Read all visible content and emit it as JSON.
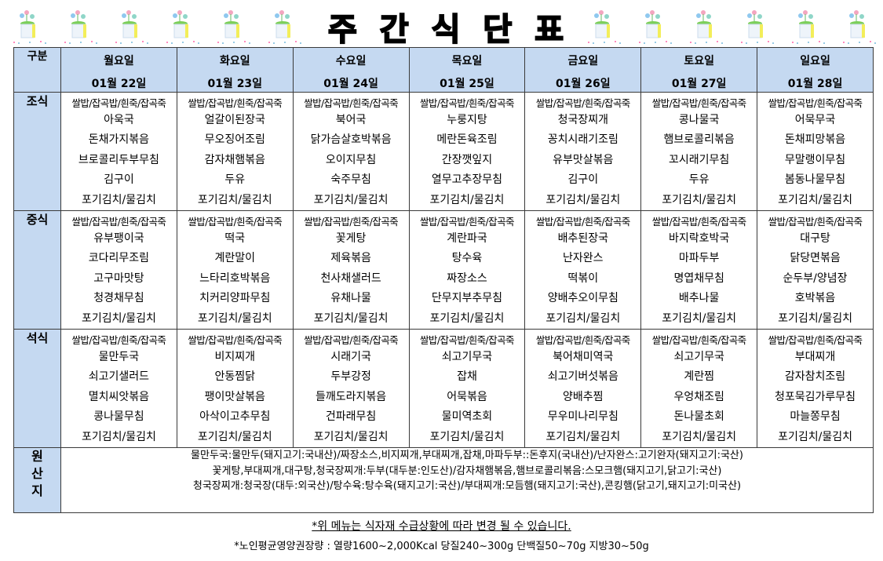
{
  "title": "주간식단표",
  "header": {
    "label": "구분",
    "days": [
      {
        "name": "월요일",
        "date": "01월 22일"
      },
      {
        "name": "화요일",
        "date": "01월 23일"
      },
      {
        "name": "수요일",
        "date": "01월 24일"
      },
      {
        "name": "목요일",
        "date": "01월 25일"
      },
      {
        "name": "금요일",
        "date": "01월 26일"
      },
      {
        "name": "토요일",
        "date": "01월 27일"
      },
      {
        "name": "일요일",
        "date": "01월 28일"
      }
    ]
  },
  "staple": "쌀밥/잡곡밥/흰죽/잡곡죽",
  "meals": [
    {
      "label": "조식",
      "days": [
        [
          "아욱국",
          "돈채가지볶음",
          "브로콜리두부무침",
          "김구이",
          "포기김치/물김치"
        ],
        [
          "얼갈이된장국",
          "무오징어조림",
          "감자채햄볶음",
          "두유",
          "포기김치/물김치"
        ],
        [
          "북어국",
          "닭가슴살호박볶음",
          "오이지무침",
          "숙주무침",
          "포기김치/물김치"
        ],
        [
          "누룽지탕",
          "메란돈육조림",
          "간장깻잎지",
          "열무고추장무침",
          "포기김치/물김치"
        ],
        [
          "청국장찌개",
          "꽁치시래기조림",
          "유부맛살볶음",
          "김구이",
          "포기김치/물김치"
        ],
        [
          "콩나물국",
          "햄브로콜리볶음",
          "꼬시래기무침",
          "두유",
          "포기김치/물김치"
        ],
        [
          "어묵무국",
          "돈채피망볶음",
          "무말랭이무침",
          "봄동나물무침",
          "포기김치/물김치"
        ]
      ]
    },
    {
      "label": "중식",
      "days": [
        [
          "유부팽이국",
          "코다리무조림",
          "고구마맛탕",
          "청경채무침",
          "포기김치/물김치"
        ],
        [
          "떡국",
          "계란말이",
          "느타리호박볶음",
          "치커리양파무침",
          "포기김치/물김치"
        ],
        [
          "꽃게탕",
          "제육볶음",
          "천사채샐러드",
          "유채나물",
          "포기김치/물김치"
        ],
        [
          "계란파국",
          "탕수육",
          "짜장소스",
          "단무지부추무침",
          "포기김치/물김치"
        ],
        [
          "배추된장국",
          "난자완스",
          "떡볶이",
          "양배추오이무침",
          "포기김치/물김치"
        ],
        [
          "바지락호박국",
          "마파두부",
          "명엽채무침",
          "배추나물",
          "포기김치/물김치"
        ],
        [
          "대구탕",
          "닭당면볶음",
          "순두부/양념장",
          "호박볶음",
          "포기김치/물김치"
        ]
      ]
    },
    {
      "label": "석식",
      "days": [
        [
          "물만두국",
          "쇠고기샐러드",
          "멸치씨앗볶음",
          "콩나물무침",
          "포기김치/물김치"
        ],
        [
          "비지찌개",
          "안동찜닭",
          "팽이맛살볶음",
          "아삭이고추무침",
          "포기김치/물김치"
        ],
        [
          "시래기국",
          "두부강정",
          "들깨도라지볶음",
          "건파래무침",
          "포기김치/물김치"
        ],
        [
          "쇠고기무국",
          "잡채",
          "어묵볶음",
          "물미역초회",
          "포기김치/물김치"
        ],
        [
          "북어채미역국",
          "쇠고기버섯볶음",
          "양배추찜",
          "무우미나리무침",
          "포기김치/물김치"
        ],
        [
          "쇠고기무국",
          "계란찜",
          "우엉채조림",
          "돈나물초회",
          "포기김치/물김치"
        ],
        [
          "부대찌개",
          "감자참치조림",
          "청포묵김가루무침",
          "마늘쫑무침",
          "포기김치/물김치"
        ]
      ]
    }
  ],
  "origin": {
    "label": [
      "원",
      "산",
      "지"
    ],
    "lines": [
      "물만두국:물만두(돼지고기:국내산)/짜장소스,비지찌개,부대찌개,잡채,마파두부::돈후지(국내산)/난자완스:고기완자(돼지고기:국산)",
      "꽃게탕,부대찌개,대구탕,청국장찌개:두부(대두분:인도산)/감자채햄볶음,햄브로콜리볶음:스모크햄(돼지고기,닭고기:국산)",
      "청국장찌개:청국장(대두:외국산)/탕수육:탕수육(돼지고기:국산)/부대찌개:모듬햄(돼지고기:국산),콘킹햄(닭고기,돼지고기:미국산)"
    ]
  },
  "notice": "*위 메뉴는 식자재 수급상황에 따라 변경 될 수 있습니다.",
  "nutrition": "*노인평균영양권장량 : 열량1600~2,000Kcal 당질240~300g 단백질50~70g 지방30~50g",
  "colors": {
    "header_bg": "#c5d9f1",
    "border": "#3a3a3a"
  },
  "decorations": [
    "flower-pot-icon"
  ]
}
